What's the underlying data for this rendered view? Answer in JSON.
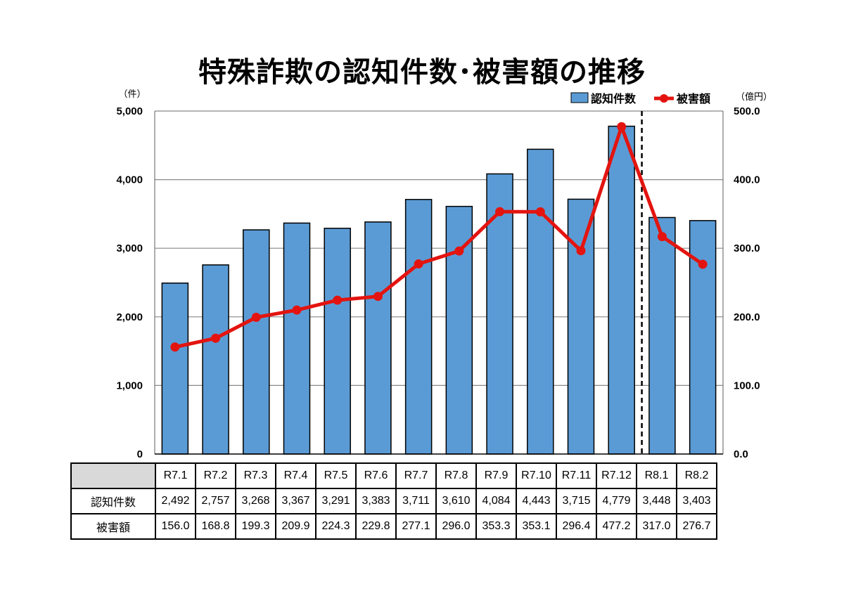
{
  "title": "特殊詐欺の認知件数･被害額の推移",
  "chart_data": {
    "type": "bar",
    "categories": [
      "R7.1",
      "R7.2",
      "R7.3",
      "R7.4",
      "R7.5",
      "R7.6",
      "R7.7",
      "R7.8",
      "R7.9",
      "R7.10",
      "R7.11",
      "R7.12",
      "R8.1",
      "R8.2"
    ],
    "series": [
      {
        "name": "認知件数",
        "type": "bar",
        "axis": "left",
        "color": "#5b9bd5",
        "values": [
          2492,
          2757,
          3268,
          3367,
          3291,
          3383,
          3711,
          3610,
          4084,
          4443,
          3715,
          4779,
          3448,
          3403
        ]
      },
      {
        "name": "被害額",
        "type": "line",
        "axis": "right",
        "color": "#e3140f",
        "values": [
          156.0,
          168.8,
          199.3,
          209.9,
          224.3,
          229.8,
          277.1,
          296.0,
          353.3,
          353.1,
          296.4,
          477.2,
          317.0,
          276.7
        ]
      }
    ],
    "y_left": {
      "unit": "（件）",
      "ylim": [
        0,
        5000
      ],
      "ticks": [
        "0",
        "1,000",
        "2,000",
        "3,000",
        "4,000",
        "5,000"
      ]
    },
    "y_right": {
      "unit": "（億円）",
      "ylim": [
        0,
        500
      ],
      "ticks": [
        "0.0",
        "100.0",
        "200.0",
        "300.0",
        "400.0",
        "500.0"
      ]
    },
    "grid": true,
    "legend_position": "top-right",
    "divider_after": "R7.12"
  },
  "table": {
    "rows": [
      {
        "label": "認知件数",
        "values": [
          "2,492",
          "2,757",
          "3,268",
          "3,367",
          "3,291",
          "3,383",
          "3,711",
          "3,610",
          "4,084",
          "4,443",
          "3,715",
          "4,779",
          "3,448",
          "3,403"
        ]
      },
      {
        "label": "被害額",
        "values": [
          "156.0",
          "168.8",
          "199.3",
          "209.9",
          "224.3",
          "229.8",
          "277.1",
          "296.0",
          "353.3",
          "353.1",
          "296.4",
          "477.2",
          "317.0",
          "276.7"
        ]
      }
    ]
  }
}
